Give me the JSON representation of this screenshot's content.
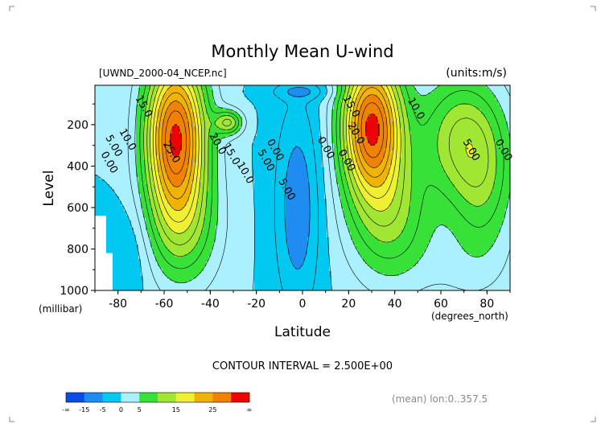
{
  "chart_data": {
    "type": "contour",
    "title": "Monthly Mean U-wind",
    "subtitle_left": "[UWND_2000-04_NCEP.nc]",
    "subtitle_right": "(units:m/s)",
    "xlabel": "Latitude",
    "x_unit": "(degrees_north)",
    "ylabel": "Level",
    "y_unit": "(millibar)",
    "xlim": [
      -90,
      90
    ],
    "ylim": [
      1000,
      10
    ],
    "x_ticks": [
      -80,
      -60,
      -40,
      -20,
      0,
      20,
      40,
      60,
      80
    ],
    "y_ticks": [
      200,
      400,
      600,
      800,
      1000
    ],
    "contour_interval_text": "CONTOUR INTERVAL = 2.500E+00",
    "averaging_text": "(mean) lon:0..357.5",
    "contour_labels": [
      {
        "text": "15.0",
        "lat": -70,
        "lev": 120
      },
      {
        "text": "10.0",
        "lat": -77,
        "lev": 280
      },
      {
        "text": "5.00",
        "lat": -83,
        "lev": 310
      },
      {
        "text": "0.00",
        "lat": -85,
        "lev": 390
      },
      {
        "text": "25.0",
        "lat": -58,
        "lev": 340
      },
      {
        "text": "20.0",
        "lat": -38,
        "lev": 300
      },
      {
        "text": "15.0",
        "lat": -32,
        "lev": 350
      },
      {
        "text": "10.0",
        "lat": -26,
        "lev": 440
      },
      {
        "text": "5.00",
        "lat": -17,
        "lev": 380
      },
      {
        "text": "0.00",
        "lat": -13,
        "lev": 330
      },
      {
        "text": "5.00",
        "lat": -8,
        "lev": 520
      },
      {
        "text": "0.00",
        "lat": 9,
        "lev": 320
      },
      {
        "text": "0.00",
        "lat": 18,
        "lev": 380
      },
      {
        "text": "15.0",
        "lat": 20,
        "lev": 120
      },
      {
        "text": "20.0",
        "lat": 22,
        "lev": 250
      },
      {
        "text": "10.0",
        "lat": 48,
        "lev": 130
      },
      {
        "text": "5.00",
        "lat": 72,
        "lev": 330
      },
      {
        "text": "0.00",
        "lat": 86,
        "lev": 330
      }
    ],
    "color_levels": [
      {
        "range": "< -15",
        "color": "#0a4de6"
      },
      {
        "range": "-15..-5",
        "color": "#1e8cf0"
      },
      {
        "range": "-5..0",
        "color": "#00c8f0"
      },
      {
        "range": "0..5",
        "color": "#aaf0ff"
      },
      {
        "range": "5..10",
        "color": "#37e137"
      },
      {
        "range": "10..15",
        "color": "#a0e632"
      },
      {
        "range": "15..20",
        "color": "#f0f032"
      },
      {
        "range": "20..25",
        "color": "#f0b400"
      },
      {
        "range": "25..30",
        "color": "#f08200"
      },
      {
        "range": "> 30",
        "color": "#f00000"
      }
    ],
    "colorbar_labels": [
      "-∞",
      "-15",
      "-5",
      "0",
      "5",
      "15",
      "25",
      "∞"
    ],
    "features": [
      {
        "name": "southern-jet",
        "lat": -55,
        "lev": 250,
        "max_speed_ms": 30
      },
      {
        "name": "northern-jet",
        "lat": 30,
        "lev": 200,
        "max_speed_ms": 30
      },
      {
        "name": "tropical-easterlies",
        "lat": -2,
        "lev": 600,
        "min_speed_ms": -7
      }
    ]
  }
}
